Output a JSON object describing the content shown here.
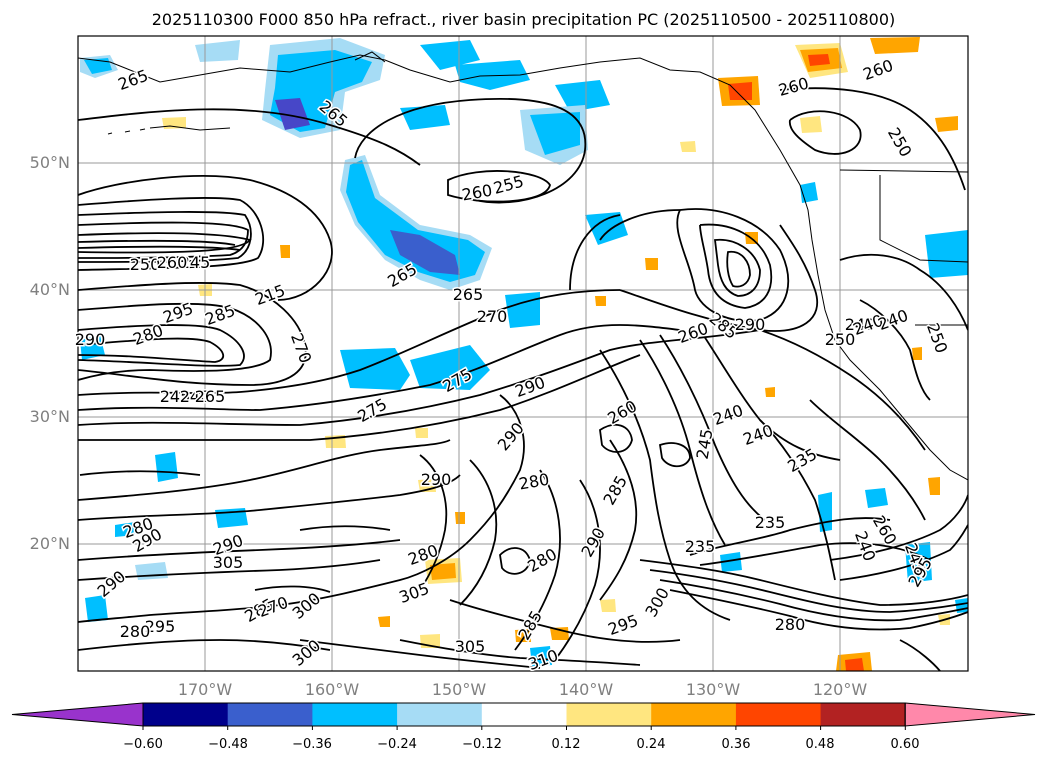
{
  "title": "2025110300 F000 850 hPa refract., river basin precipitation PC (2025110500 - 2025110800)",
  "map": {
    "lat_labels": [
      "50°N",
      "40°N",
      "30°N",
      "20°N"
    ],
    "lon_labels": [
      "170°W",
      "160°W",
      "150°W",
      "140°W",
      "130°W",
      "120°W"
    ],
    "contour_labels": [
      "265",
      "265",
      "260",
      "255",
      "260",
      "265",
      "265",
      "270",
      "260",
      "250",
      "245",
      "250",
      "260",
      "295",
      "290",
      "280",
      "215",
      "270",
      "285",
      "275",
      "290",
      "260",
      "245",
      "240",
      "265",
      "275",
      "290",
      "280",
      "285",
      "290",
      "260",
      "285",
      "240",
      "240",
      "235",
      "240",
      "250",
      "240",
      "240",
      "250",
      "235",
      "290",
      "280",
      "290",
      "280",
      "285",
      "245",
      "290",
      "235",
      "240",
      "260",
      "245",
      "295",
      "270",
      "280",
      "305",
      "310",
      "305",
      "295",
      "305",
      "300",
      "295",
      "280",
      "285",
      "290",
      "300",
      "300",
      "280",
      "290"
    ],
    "shading_colors": {
      "light_blue": "#a6dcf5",
      "blue": "#00bfff",
      "dark_blue": "#3a5fcd",
      "indigo": "#4747c8",
      "light_orange": "#ffe680",
      "orange": "#ffa500",
      "red_orange": "#ff4500"
    }
  },
  "colorbar": {
    "ticks": [
      "−0.60",
      "−0.48",
      "−0.36",
      "−0.24",
      "−0.12",
      "0.12",
      "0.24",
      "0.36",
      "0.48",
      "0.60"
    ],
    "colors": [
      "#9933cc",
      "#00008b",
      "#3a5fcd",
      "#00bfff",
      "#a6dcf5",
      "#ffffff",
      "#ffe680",
      "#ffa500",
      "#ff4500",
      "#b22222",
      "#ff88aa"
    ]
  }
}
